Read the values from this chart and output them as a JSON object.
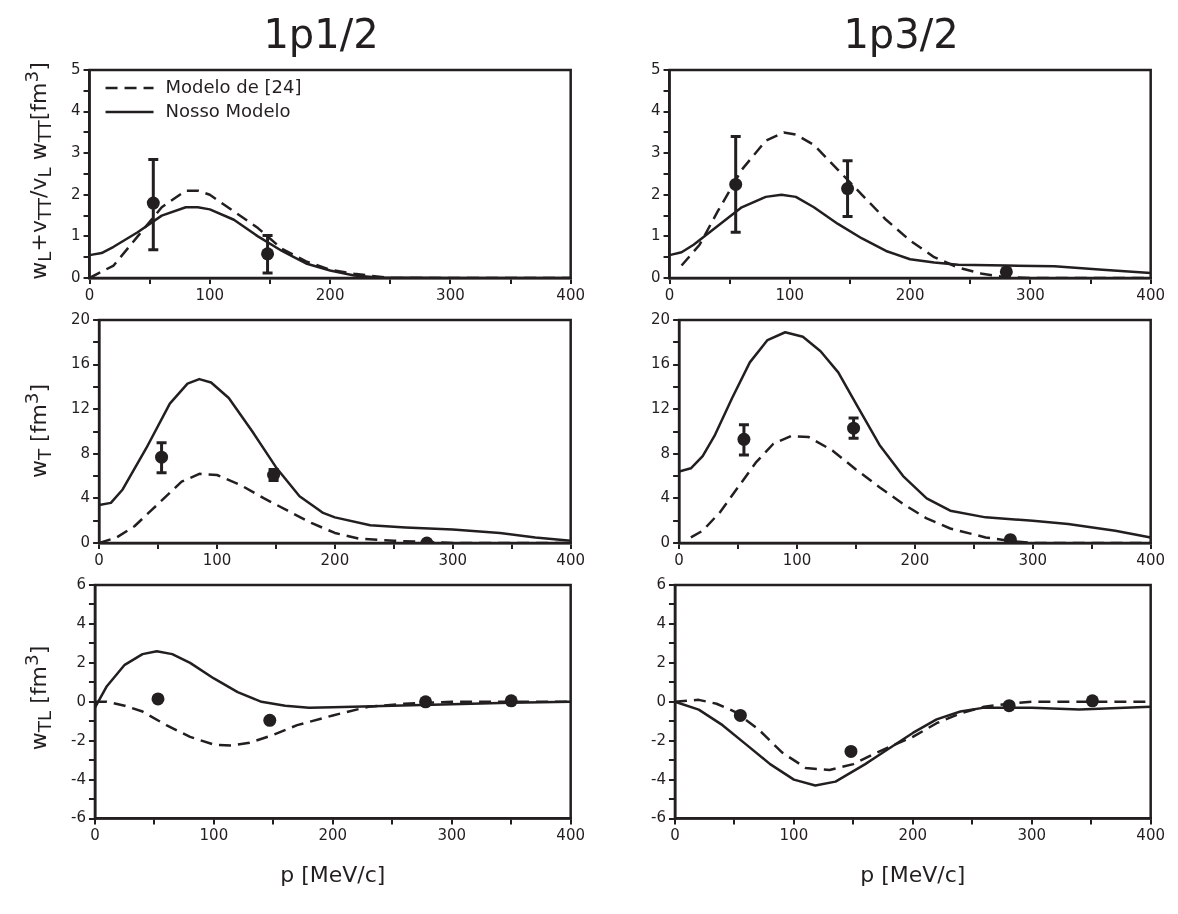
{
  "chart_data": [
    {
      "type": "line",
      "title": "1p1/2",
      "ylabel": "w$_{L}$+v$_{TT}$/v$_{L}$ w$_{TT}$[fm$^{3}$]",
      "legend": "top left",
      "xlim": [
        0,
        400
      ],
      "xticks": [
        0,
        {
          "value": 50,
          "label": null
        },
        100,
        {
          "value": 150,
          "label": null
        },
        200,
        {
          "value": 250,
          "label": null
        },
        300,
        {
          "value": 350,
          "label": null
        },
        400
      ],
      "ylim": [
        0,
        5
      ],
      "yticks": [
        0,
        {
          "value": 0.5,
          "label": null
        },
        1,
        {
          "value": 1.5,
          "label": null
        },
        2,
        {
          "value": 2.5,
          "label": null
        },
        3,
        {
          "value": 3.5,
          "label": null
        },
        4,
        {
          "value": 4.5,
          "label": null
        },
        5
      ],
      "series": [
        {
          "name": "Modelo de [24]",
          "color": "#231f20",
          "line_style": "dashed",
          "x": [
            0,
            20,
            40,
            60,
            80,
            90,
            100,
            120,
            140,
            160,
            180,
            200,
            220,
            250,
            300,
            400
          ],
          "values": [
            0,
            0.3,
            1.0,
            1.7,
            2.1,
            2.1,
            2.0,
            1.6,
            1.2,
            0.7,
            0.4,
            0.2,
            0.1,
            0,
            0,
            0
          ]
        },
        {
          "name": "Nosso Modelo",
          "color": "#231f20",
          "line_style": "solid",
          "x": [
            0,
            10,
            20,
            40,
            60,
            80,
            90,
            100,
            120,
            140,
            160,
            180,
            200,
            220,
            240,
            300,
            400
          ],
          "values": [
            0.55,
            0.6,
            0.75,
            1.1,
            1.5,
            1.7,
            1.7,
            1.65,
            1.4,
            1.0,
            0.65,
            0.35,
            0.18,
            0.06,
            0.01,
            0,
            0
          ]
        },
        {
          "type": "scatter",
          "color": "#231f20",
          "marker": "circle",
          "x": [
            53,
            148
          ],
          "values": [
            1.8,
            0.58
          ],
          "errors": [
            [
              0.68,
              2.85
            ],
            [
              0.12,
              1.02
            ]
          ]
        }
      ]
    },
    {
      "type": "line",
      "title": "1p3/2",
      "legend": false,
      "xlim": [
        0,
        400
      ],
      "xticks": [
        0,
        {
          "value": 50,
          "label": null
        },
        100,
        {
          "value": 150,
          "label": null
        },
        200,
        {
          "value": 250,
          "label": null
        },
        300,
        {
          "value": 350,
          "label": null
        },
        400
      ],
      "ylim": [
        0,
        5
      ],
      "yticks": [
        0,
        {
          "value": 0.5,
          "label": null
        },
        1,
        {
          "value": 1.5,
          "label": null
        },
        2,
        {
          "value": 2.5,
          "label": null
        },
        3,
        {
          "value": 3.5,
          "label": null
        },
        4,
        {
          "value": 4.5,
          "label": null
        },
        5
      ],
      "series": [
        {
          "color": "#231f20",
          "line_style": "dashed",
          "x": [
            10,
            25,
            40,
            60,
            80,
            95,
            105,
            120,
            140,
            160,
            180,
            200,
            220,
            240,
            260,
            280,
            300,
            400
          ],
          "values": [
            0.3,
            0.8,
            1.6,
            2.6,
            3.3,
            3.5,
            3.45,
            3.2,
            2.6,
            2.0,
            1.4,
            0.9,
            0.5,
            0.25,
            0.1,
            0.02,
            0,
            0
          ]
        },
        {
          "color": "#231f20",
          "line_style": "solid",
          "x": [
            0,
            10,
            20,
            40,
            60,
            80,
            93,
            105,
            120,
            140,
            160,
            180,
            200,
            220,
            240,
            280,
            320,
            360,
            400
          ],
          "values": [
            0.55,
            0.62,
            0.8,
            1.25,
            1.7,
            1.95,
            2.0,
            1.95,
            1.7,
            1.3,
            0.95,
            0.65,
            0.45,
            0.37,
            0.32,
            0.3,
            0.28,
            0.2,
            0.12
          ]
        },
        {
          "type": "scatter",
          "color": "#231f20",
          "marker": "circle",
          "x": [
            55,
            148,
            280
          ],
          "values": [
            2.25,
            2.15,
            0.15
          ],
          "errors": [
            [
              1.1,
              3.4
            ],
            [
              1.48,
              2.82
            ],
            null
          ]
        }
      ]
    },
    {
      "type": "line",
      "ylabel": "w$_{T}$ [fm$^{3}$]",
      "legend": false,
      "xlim": [
        0,
        400
      ],
      "xticks": [
        0,
        {
          "value": 50,
          "label": null
        },
        100,
        {
          "value": 150,
          "label": null
        },
        200,
        {
          "value": 250,
          "label": null
        },
        300,
        {
          "value": 350,
          "label": null
        },
        400
      ],
      "ylim": [
        0,
        20
      ],
      "yticks": [
        0,
        {
          "value": 2,
          "label": null
        },
        4,
        {
          "value": 6,
          "label": null
        },
        8,
        {
          "value": 10,
          "label": null
        },
        12,
        {
          "value": 14,
          "label": null
        },
        16,
        {
          "value": 18,
          "label": null
        },
        20
      ],
      "series": [
        {
          "color": "#231f20",
          "line_style": "dashed",
          "x": [
            0,
            15,
            30,
            50,
            70,
            85,
            100,
            120,
            140,
            160,
            180,
            200,
            220,
            250,
            300,
            400
          ],
          "values": [
            0,
            0.5,
            1.5,
            3.5,
            5.5,
            6.2,
            6.1,
            5.2,
            4,
            2.9,
            1.8,
            0.9,
            0.4,
            0.2,
            0,
            0
          ]
        },
        {
          "color": "#231f20",
          "line_style": "solid",
          "x": [
            0,
            10,
            20,
            40,
            60,
            75,
            85,
            95,
            110,
            130,
            150,
            170,
            190,
            200,
            230,
            260,
            300,
            340,
            370,
            400
          ],
          "values": [
            3.4,
            3.6,
            4.8,
            8.5,
            12.5,
            14.3,
            14.7,
            14.4,
            13,
            10,
            6.8,
            4.2,
            2.7,
            2.3,
            1.6,
            1.4,
            1.2,
            0.9,
            0.5,
            0.2
          ]
        },
        {
          "type": "scatter",
          "color": "#231f20",
          "marker": "circle",
          "x": [
            53,
            148,
            278
          ],
          "values": [
            7.7,
            6.1,
            0
          ],
          "errors": [
            [
              6.3,
              9.0
            ],
            [
              5.6,
              6.6
            ],
            null
          ]
        }
      ]
    },
    {
      "type": "line",
      "legend": false,
      "xlim": [
        0,
        400
      ],
      "xticks": [
        0,
        {
          "value": 50,
          "label": null
        },
        100,
        {
          "value": 150,
          "label": null
        },
        200,
        {
          "value": 250,
          "label": null
        },
        300,
        {
          "value": 350,
          "label": null
        },
        400
      ],
      "ylim": [
        0,
        20
      ],
      "yticks": [
        0,
        {
          "value": 2,
          "label": null
        },
        4,
        {
          "value": 6,
          "label": null
        },
        8,
        {
          "value": 10,
          "label": null
        },
        12,
        {
          "value": 14,
          "label": null
        },
        16,
        {
          "value": 18,
          "label": null
        },
        20
      ],
      "series": [
        {
          "color": "#231f20",
          "line_style": "dashed",
          "x": [
            10,
            20,
            35,
            50,
            65,
            80,
            95,
            110,
            130,
            150,
            170,
            190,
            210,
            230,
            260,
            280,
            300,
            400
          ],
          "values": [
            0.5,
            1.1,
            2.8,
            5,
            7.2,
            8.9,
            9.6,
            9.5,
            8.3,
            6.6,
            5,
            3.5,
            2.2,
            1.3,
            0.5,
            0.2,
            0,
            0
          ]
        },
        {
          "color": "#231f20",
          "line_style": "solid",
          "x": [
            0,
            10,
            20,
            30,
            45,
            60,
            75,
            90,
            105,
            120,
            135,
            150,
            170,
            190,
            210,
            230,
            260,
            300,
            330,
            370,
            400
          ],
          "values": [
            6.4,
            6.7,
            7.8,
            9.6,
            13,
            16.2,
            18.2,
            18.9,
            18.5,
            17.2,
            15.3,
            12.5,
            8.8,
            6,
            4,
            2.9,
            2.3,
            2,
            1.7,
            1.1,
            0.5
          ]
        },
        {
          "type": "scatter",
          "color": "#231f20",
          "marker": "circle",
          "x": [
            55,
            148,
            281
          ],
          "values": [
            9.3,
            10.3,
            0.3
          ],
          "errors": [
            [
              7.9,
              10.6
            ],
            [
              9.4,
              11.2
            ],
            null
          ]
        }
      ]
    },
    {
      "type": "line",
      "xlabel": "p [MeV/c]",
      "ylabel": "w$_{TL}$ [fm$^{3}$]",
      "legend": false,
      "xlim": [
        0,
        400
      ],
      "xticks": [
        0,
        {
          "value": 50,
          "label": null
        },
        100,
        {
          "value": 150,
          "label": null
        },
        200,
        {
          "value": 250,
          "label": null
        },
        300,
        {
          "value": 350,
          "label": null
        },
        400
      ],
      "ylim": [
        -6,
        6
      ],
      "yticks": [
        -6,
        {
          "value": -5,
          "label": null
        },
        -4,
        {
          "value": -3,
          "label": null
        },
        -2,
        {
          "value": -1,
          "label": null
        },
        0,
        {
          "value": 1,
          "label": null
        },
        2,
        {
          "value": 3,
          "label": null
        },
        4,
        {
          "value": 5,
          "label": null
        },
        6
      ],
      "series": [
        {
          "color": "#231f20",
          "line_style": "dashed",
          "x": [
            0,
            10,
            25,
            40,
            60,
            80,
            100,
            115,
            130,
            150,
            170,
            200,
            230,
            260,
            300,
            400
          ],
          "values": [
            0,
            0,
            -0.2,
            -0.5,
            -1.2,
            -1.8,
            -2.2,
            -2.25,
            -2.1,
            -1.7,
            -1.2,
            -0.7,
            -0.25,
            -0.1,
            0,
            0
          ]
        },
        {
          "color": "#231f20",
          "line_style": "solid",
          "x": [
            0,
            10,
            25,
            40,
            52,
            65,
            80,
            100,
            120,
            140,
            160,
            180,
            200,
            250,
            300,
            350,
            400
          ],
          "values": [
            -0.3,
            0.8,
            1.9,
            2.45,
            2.6,
            2.45,
            2.0,
            1.2,
            0.5,
            0,
            -0.2,
            -0.3,
            -0.28,
            -0.2,
            -0.12,
            -0.05,
            0
          ]
        },
        {
          "type": "scatter",
          "color": "#231f20",
          "marker": "circle",
          "x": [
            53,
            147,
            278,
            350
          ],
          "values": [
            0.15,
            -0.95,
            0,
            0.05
          ]
        }
      ]
    },
    {
      "type": "line",
      "xlabel": "p [MeV/c]",
      "legend": false,
      "xlim": [
        0,
        400
      ],
      "xticks": [
        0,
        {
          "value": 50,
          "label": null
        },
        100,
        {
          "value": 150,
          "label": null
        },
        200,
        {
          "value": 250,
          "label": null
        },
        300,
        {
          "value": 350,
          "label": null
        },
        400
      ],
      "ylim": [
        -6,
        6
      ],
      "yticks": [
        -6,
        {
          "value": -5,
          "label": null
        },
        -4,
        {
          "value": -3,
          "label": null
        },
        -2,
        {
          "value": -1,
          "label": null
        },
        0,
        {
          "value": 1,
          "label": null
        },
        2,
        {
          "value": 3,
          "label": null
        },
        4,
        {
          "value": 5,
          "label": null
        },
        6
      ],
      "series": [
        {
          "color": "#231f20",
          "line_style": "dashed",
          "x": [
            0,
            10,
            20,
            35,
            50,
            70,
            90,
            110,
            130,
            150,
            170,
            200,
            220,
            240,
            260,
            280,
            300,
            400
          ],
          "values": [
            0,
            0.05,
            0.1,
            -0.1,
            -0.5,
            -1.4,
            -2.6,
            -3.4,
            -3.5,
            -3.2,
            -2.6,
            -1.8,
            -1.1,
            -0.6,
            -0.25,
            -0.1,
            0,
            0
          ]
        },
        {
          "color": "#231f20",
          "line_style": "solid",
          "x": [
            0,
            20,
            40,
            60,
            80,
            100,
            118,
            135,
            160,
            180,
            200,
            220,
            240,
            260,
            300,
            340,
            400
          ],
          "values": [
            0,
            -0.4,
            -1.2,
            -2.2,
            -3.2,
            -4,
            -4.3,
            -4.1,
            -3.2,
            -2.4,
            -1.6,
            -0.9,
            -0.5,
            -0.3,
            -0.3,
            -0.4,
            -0.25
          ]
        },
        {
          "type": "scatter",
          "color": "#231f20",
          "marker": "circle",
          "x": [
            55,
            148,
            281,
            351
          ],
          "values": [
            -0.7,
            -2.55,
            -0.2,
            0.05
          ]
        }
      ]
    }
  ]
}
